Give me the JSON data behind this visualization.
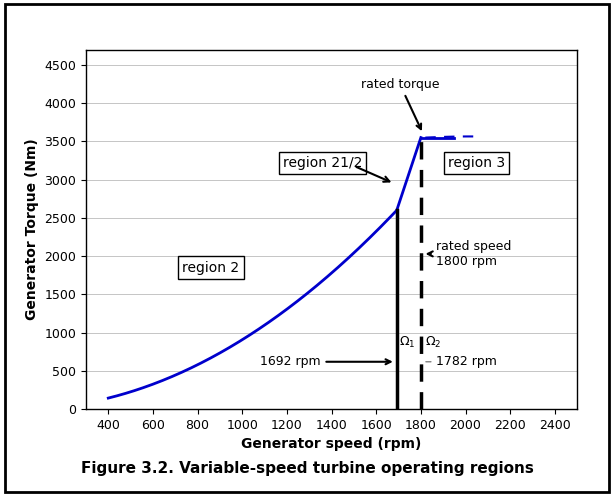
{
  "xlim": [
    300,
    2500
  ],
  "ylim": [
    0,
    4700
  ],
  "xticks": [
    400,
    600,
    800,
    1000,
    1200,
    1400,
    1600,
    1800,
    2000,
    2200,
    2400
  ],
  "yticks": [
    0,
    500,
    1000,
    1500,
    2000,
    2500,
    3000,
    3500,
    4000,
    4500
  ],
  "xlabel": "Generator speed (rpm)",
  "ylabel": "Generator Torque (Nm)",
  "caption": "Figure 3.2. Variable-speed turbine operating regions",
  "omega1": 1692,
  "omega2": 1800,
  "rated_speed": 1800,
  "rated_torque": 3550,
  "curve_color": "#0000cc",
  "fig_bg": "#ffffff"
}
